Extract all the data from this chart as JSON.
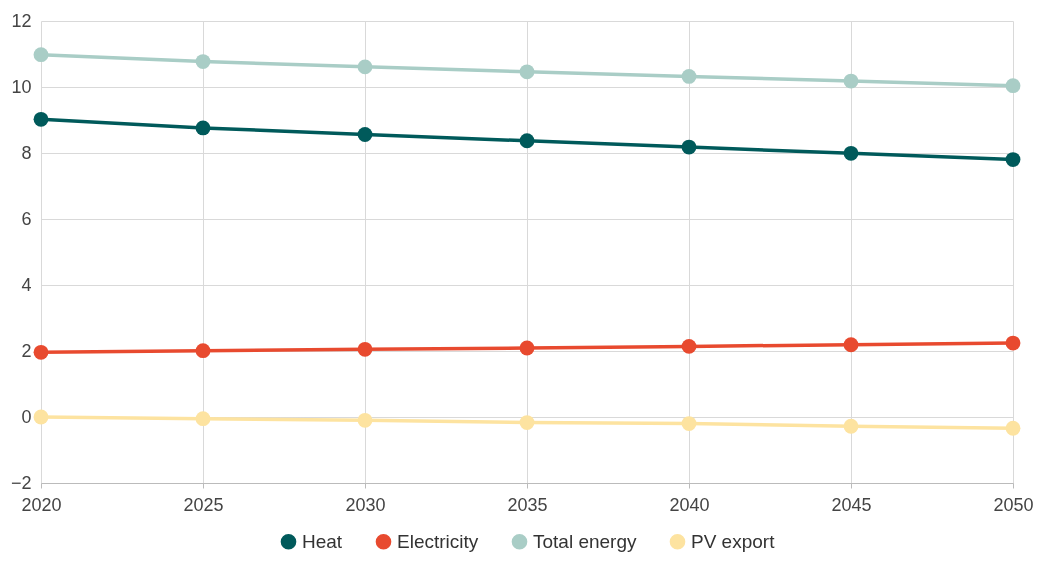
{
  "chart_data": {
    "type": "line",
    "x": [
      2020,
      2025,
      2030,
      2035,
      2040,
      2045,
      2050
    ],
    "series": [
      {
        "name": "Heat",
        "color": "#005a5b",
        "values": [
          9.02,
          8.76,
          8.56,
          8.37,
          8.18,
          7.99,
          7.8
        ]
      },
      {
        "name": "Electricity",
        "color": "#e84a2f",
        "values": [
          1.96,
          2.01,
          2.05,
          2.09,
          2.14,
          2.19,
          2.24
        ]
      },
      {
        "name": "Total energy",
        "color": "#a9cdc6",
        "values": [
          10.98,
          10.77,
          10.61,
          10.46,
          10.32,
          10.18,
          10.04
        ]
      },
      {
        "name": "PV export",
        "color": "#fde3a0",
        "values": [
          0,
          -0.05,
          -0.1,
          -0.17,
          -0.2,
          -0.28,
          -0.34
        ]
      }
    ],
    "xlim": [
      2020,
      2050
    ],
    "xticks": [
      2020,
      2025,
      2030,
      2035,
      2040,
      2045,
      2050
    ],
    "ylim": [
      -2,
      12
    ],
    "yticks": [
      -2,
      0,
      2,
      4,
      6,
      8,
      10,
      12
    ],
    "grid": true,
    "legend": "bottom",
    "marker": "circle",
    "line_style": "solid"
  }
}
